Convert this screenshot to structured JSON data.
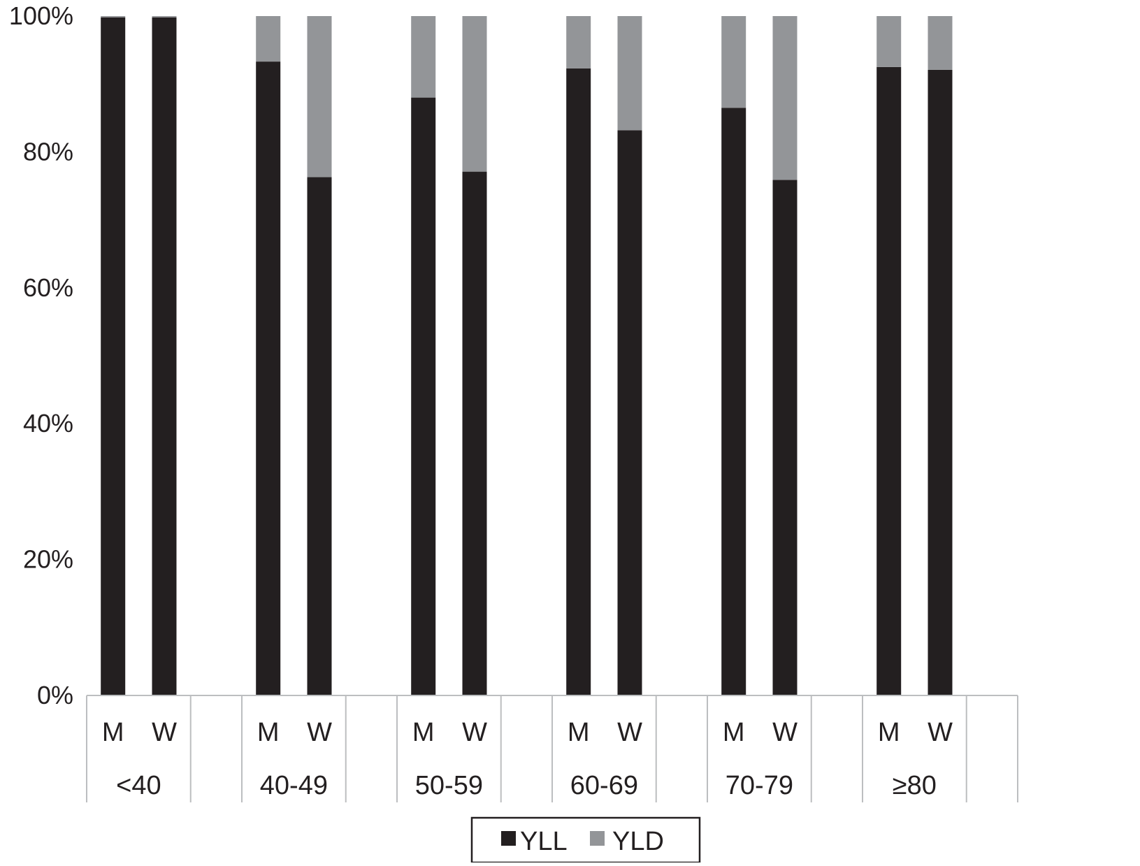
{
  "colors": {
    "yll": "#231f20",
    "yld": "#939598",
    "axis": "#bcbec0",
    "text": "#231f20"
  },
  "chart_data": {
    "type": "bar",
    "stacked": true,
    "normalized": true,
    "title": "",
    "xlabel": "",
    "ylabel": "",
    "ylim": [
      0,
      100
    ],
    "yticks": [
      "0%",
      "20%",
      "40%",
      "60%",
      "80%",
      "100%"
    ],
    "yticks_values": [
      0,
      20,
      40,
      60,
      80,
      100
    ],
    "grid": false,
    "legend_position": "bottom",
    "groups": [
      "<40",
      "40-49",
      "50-59",
      "60-69",
      "70-79",
      "≥80"
    ],
    "categories": [
      "M",
      "W",
      "M",
      "W",
      "M",
      "W",
      "M",
      "W",
      "M",
      "W",
      "M",
      "W"
    ],
    "category_groups": [
      "<40",
      "<40",
      "40-49",
      "40-49",
      "50-59",
      "50-59",
      "60-69",
      "60-69",
      "70-79",
      "70-79",
      "≥80",
      "≥80"
    ],
    "series": [
      {
        "name": "YLL",
        "color": "#231f20",
        "values": [
          99.8,
          99.8,
          93.3,
          76.3,
          88,
          77.1,
          92.3,
          83.2,
          86.5,
          75.9,
          92.5,
          92.1
        ]
      },
      {
        "name": "YLD",
        "color": "#939598",
        "values": [
          0.2,
          0.2,
          6.7,
          23.7,
          12,
          22.9,
          7.7,
          16.8,
          13.5,
          24.1,
          7.5,
          7.9
        ]
      }
    ]
  }
}
